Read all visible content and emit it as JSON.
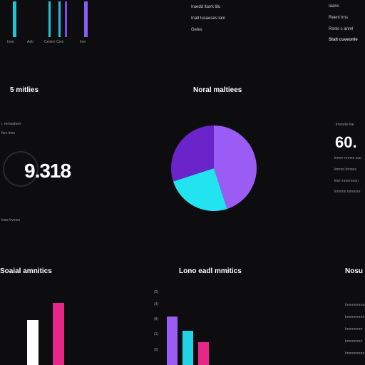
{
  "top_left": {
    "tick_labels": [
      "Imm",
      "Aeb",
      "Ceniim Cnm",
      "Imn"
    ],
    "bars": [
      {
        "color": "#18c7d6",
        "level": 1.0
      },
      {
        "color": "#18c7d6",
        "level": 1.0
      },
      {
        "color": "#8a5cf5",
        "level": 1.0
      },
      {
        "color": "#8a5cf5",
        "level": 1.0
      }
    ]
  },
  "top_center": {
    "lines": [
      "Iraedd ltarrk litu",
      "Inalt lusaeses lanl",
      "Geles"
    ]
  },
  "top_right": {
    "lines": [
      "Iaans",
      "Reenl lrns",
      "Rsnls s anml",
      "Stalt cuveonle"
    ]
  },
  "left_panel": {
    "title": "5 mitlies",
    "label_1": "l. remaatues",
    "label_2": "fom lnes",
    "value": "9.318",
    "caption": "lows lrvmes"
  },
  "pie_panel": {
    "title": "Noral maltiees"
  },
  "right_panel": {
    "subtitle": "lrnorelsl lne",
    "value": "60.",
    "rows": [
      "lnmrn rrnnnn sso",
      "lmrnnr lrrnnns",
      "lmrn nnnrrnnon",
      "lnnnmn nnnrronr"
    ]
  },
  "bottom_left": {
    "title": "Soaial amnitics"
  },
  "bottom_center": {
    "title": "Lono eadl mmitics",
    "ticks": [
      "(0)",
      "(4)",
      "(8)",
      "(1)",
      "(0)"
    ]
  },
  "bottom_right": {
    "title": "Nosu lmt",
    "rows": [
      "lrnnnrnrnrnns",
      "lrnnnrnrnrnn",
      "lrnnnrnrnrn",
      "lrnnnrnrnrn",
      "lrnnnrnrnrnn"
    ]
  },
  "chart_data": [
    {
      "type": "pie",
      "title": "Noral maltiees",
      "values": [
        45,
        25,
        30
      ],
      "colors": [
        "#9b5cf6",
        "#22e3f0",
        "#6b24c9"
      ]
    },
    {
      "type": "bar",
      "title": "Soaial amnitics",
      "values": [
        0.63,
        0.87
      ],
      "colors": [
        "#ffffff",
        "#e6288a"
      ]
    },
    {
      "type": "bar",
      "title": "Lono eadl mmitics",
      "values": [
        0.85,
        0.6,
        0.4
      ],
      "colors": [
        "#9b5cf6",
        "#22d3e6",
        "#e6288a"
      ]
    }
  ],
  "colors": {
    "background": "#0d0d0f",
    "cyan": "#18c7d6",
    "violet": "#8a5cf5",
    "magenta": "#e6288a"
  }
}
